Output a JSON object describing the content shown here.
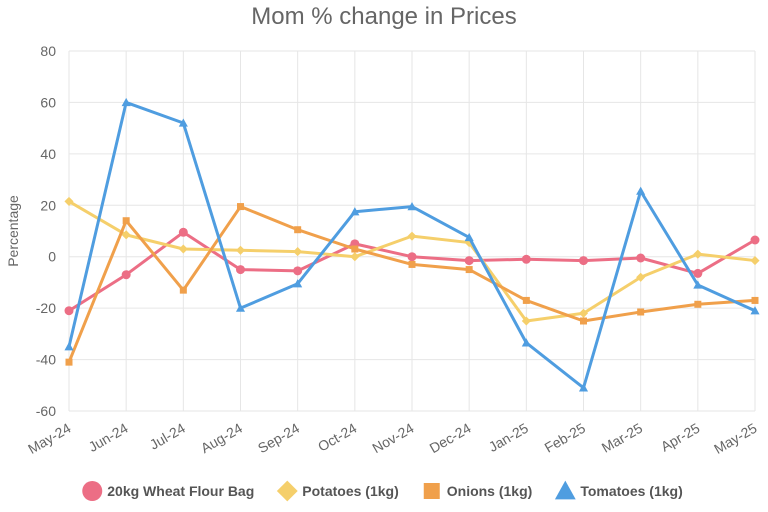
{
  "chart_data": {
    "type": "line",
    "title": "Mom % change in Prices",
    "xlabel": "",
    "ylabel": "Percentage",
    "ylim": [
      -60,
      80
    ],
    "yticks": [
      80,
      60,
      40,
      20,
      0,
      -20,
      -40,
      -60
    ],
    "grid": true,
    "legend_position": "bottom",
    "categories": [
      "May-24",
      "Jun-24",
      "Jul-24",
      "Aug-24",
      "Sep-24",
      "Oct-24",
      "Nov-24",
      "Dec-24",
      "Jan-25",
      "Feb-25",
      "Mar-25",
      "Apr-25",
      "May-25"
    ],
    "series": [
      {
        "name": "20kg Wheat Flour Bag",
        "marker": "circle",
        "color": "#ec6e85",
        "values": [
          -21,
          -7,
          9.5,
          -5,
          -5.5,
          5,
          0,
          -1.5,
          -1,
          -1.5,
          -0.5,
          -6.5,
          6.5
        ]
      },
      {
        "name": "Potatoes (1kg)",
        "marker": "diamond",
        "color": "#f5cf6b",
        "values": [
          21.5,
          8.5,
          3,
          2.5,
          2,
          0,
          8,
          5.5,
          -25,
          -22,
          -8,
          1,
          -1.5
        ]
      },
      {
        "name": "Onions (1kg)",
        "marker": "square",
        "color": "#f0a04b",
        "values": [
          -41,
          14,
          -13,
          19.5,
          10.5,
          3,
          -3,
          -5,
          -17,
          -25,
          -21.5,
          -18.5,
          -17
        ]
      },
      {
        "name": "Tomatoes (1kg)",
        "marker": "triangle",
        "color": "#4f9de0",
        "values": [
          -35,
          60,
          52,
          -20,
          -10.5,
          17.5,
          19.5,
          7.5,
          -33.5,
          -51,
          25.5,
          -11,
          -21
        ]
      }
    ]
  }
}
